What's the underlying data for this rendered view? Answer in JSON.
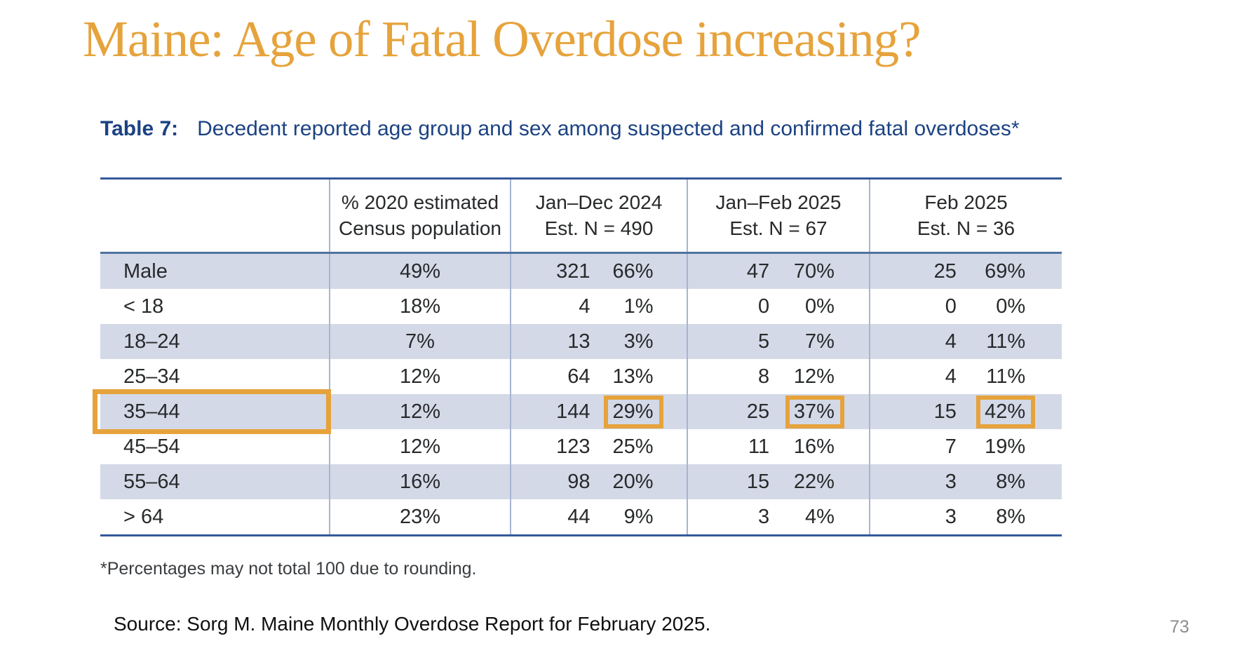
{
  "slide": {
    "title": "Maine: Age of Fatal Overdose increasing?",
    "source": "Source: Sorg M. Maine Monthly Overdose Report for February 2025.",
    "page_number": "73"
  },
  "table": {
    "label": "Table 7:",
    "caption": "Decedent reported age group and sex among suspected and confirmed fatal overdoses*",
    "footnote": "*Percentages may not total 100 due to rounding.",
    "columns": [
      {
        "line1": "% 2020 estimated",
        "line2": "Census population"
      },
      {
        "line1": "Jan–Dec 2024",
        "line2": "Est. N = 490"
      },
      {
        "line1": "Jan–Feb 2025",
        "line2": "Est. N = 67"
      },
      {
        "line1": "Feb 2025",
        "line2": "Est. N = 36"
      }
    ],
    "rows": [
      {
        "label": "Male",
        "census": "49%",
        "jd_n": "321",
        "jd_p": "66%",
        "jf_n": "47",
        "jf_p": "70%",
        "fb_n": "25",
        "fb_p": "69%"
      },
      {
        "label": "< 18",
        "census": "18%",
        "jd_n": "4",
        "jd_p": "1%",
        "jf_n": "0",
        "jf_p": "0%",
        "fb_n": "0",
        "fb_p": "0%"
      },
      {
        "label": "18–24",
        "census": "7%",
        "jd_n": "13",
        "jd_p": "3%",
        "jf_n": "5",
        "jf_p": "7%",
        "fb_n": "4",
        "fb_p": "11%"
      },
      {
        "label": "25–34",
        "census": "12%",
        "jd_n": "64",
        "jd_p": "13%",
        "jf_n": "8",
        "jf_p": "12%",
        "fb_n": "4",
        "fb_p": "11%"
      },
      {
        "label": "35–44",
        "census": "12%",
        "jd_n": "144",
        "jd_p": "29%",
        "jf_n": "25",
        "jf_p": "37%",
        "fb_n": "15",
        "fb_p": "42%"
      },
      {
        "label": "45–54",
        "census": "12%",
        "jd_n": "123",
        "jd_p": "25%",
        "jf_n": "11",
        "jf_p": "16%",
        "fb_n": "7",
        "fb_p": "19%"
      },
      {
        "label": "55–64",
        "census": "16%",
        "jd_n": "98",
        "jd_p": "20%",
        "jf_n": "15",
        "jf_p": "22%",
        "fb_n": "3",
        "fb_p": "8%"
      },
      {
        "label": "> 64",
        "census": "23%",
        "jd_n": "44",
        "jd_p": "9%",
        "jf_n": "3",
        "jf_p": "4%",
        "fb_n": "3",
        "fb_p": "8%"
      }
    ]
  },
  "colors": {
    "accent_orange": "#E6A33C",
    "caption_blue": "#1B4282",
    "row_shade": "#D4D9E7",
    "border_blue": "#35599B",
    "header_sep": "#50739F",
    "divider_blue": "#A6B5D1",
    "table_text": "#27292B",
    "page_gray": "#8C8C8C"
  }
}
